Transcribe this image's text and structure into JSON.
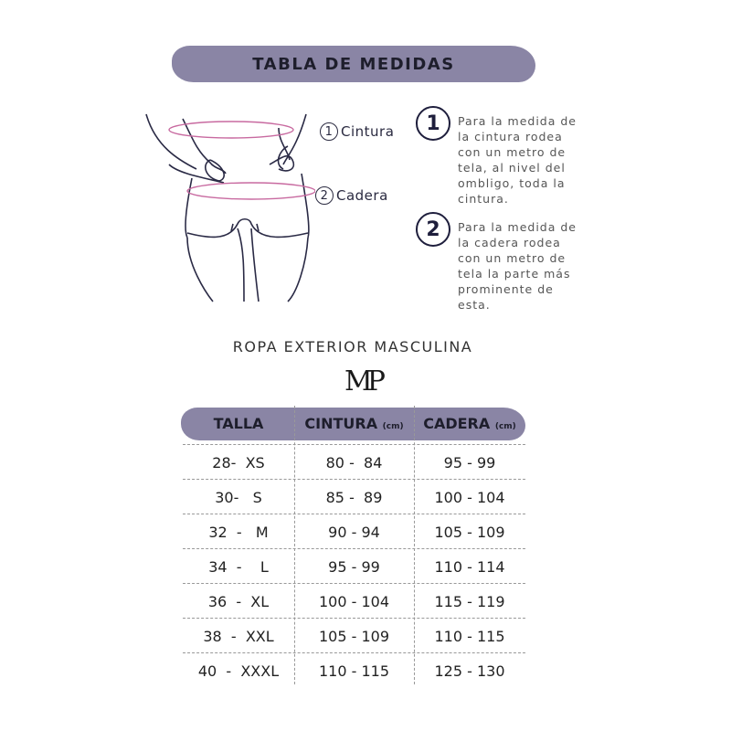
{
  "title": "TABLA DE MEDIDAS",
  "labels": [
    {
      "num": "1",
      "text": "Cintura"
    },
    {
      "num": "2",
      "text": "Cadera"
    }
  ],
  "steps": [
    {
      "num": "1",
      "text": "Para la medida de\nla cintura rodea\ncon un metro de\ntela, al nivel del\nombligo, toda la\ncintura."
    },
    {
      "num": "2",
      "text": "Para la medida de\nla cadera rodea\ncon un metro de\ntela la parte más\nprominente de\nesta."
    }
  ],
  "subtitle": "ROPA EXTERIOR MASCULINA",
  "logo": "MP",
  "table": {
    "headers": [
      {
        "label": "TALLA",
        "unit": ""
      },
      {
        "label": "CINTURA",
        "unit": "(cm)"
      },
      {
        "label": "CADERA",
        "unit": "(cm)"
      }
    ],
    "rows": [
      [
        "28-  XS",
        "80 -  84",
        "95 - 99"
      ],
      [
        "30-   S",
        "85 -  89",
        "100 - 104"
      ],
      [
        "32  -   M",
        "90 - 94",
        "105 - 109"
      ],
      [
        "34  -    L",
        "95 - 99",
        "110 - 114"
      ],
      [
        "36  -  XL",
        "100 - 104",
        "115 - 119"
      ],
      [
        "38  -  XXL",
        "105 - 109",
        "110 - 115"
      ],
      [
        "40  -  XXXL",
        "110 - 115",
        "125 - 130"
      ]
    ]
  },
  "colors": {
    "accent": "#8a85a5",
    "measure_line": "#c86aa0"
  }
}
